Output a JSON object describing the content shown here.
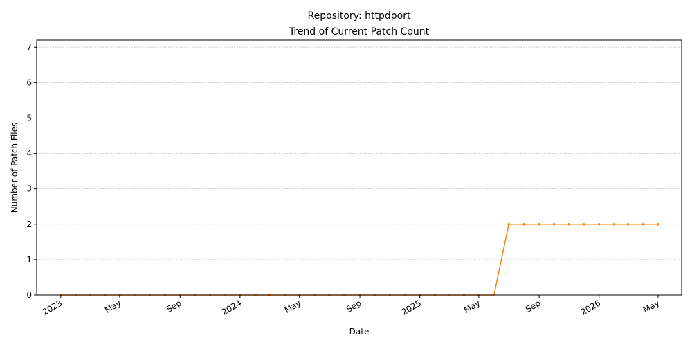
{
  "chart_data": {
    "type": "line",
    "title_line1": "Repository: httpdport",
    "title_line2": "Trend of Current Patch Count",
    "xlabel": "Date",
    "ylabel": "Number of Patch Files",
    "ylim": [
      0,
      7.2
    ],
    "xlim": [
      "2022-11-13",
      "2026-06-18"
    ],
    "grid": "y",
    "line_color": "#ff7f0e",
    "x_ticks": [
      {
        "date": "2023-01-01",
        "label": "2023"
      },
      {
        "date": "2023-05-01",
        "label": "May"
      },
      {
        "date": "2023-09-01",
        "label": "Sep"
      },
      {
        "date": "2024-01-01",
        "label": "2024"
      },
      {
        "date": "2024-05-01",
        "label": "May"
      },
      {
        "date": "2024-09-01",
        "label": "Sep"
      },
      {
        "date": "2025-01-01",
        "label": "2025"
      },
      {
        "date": "2025-05-01",
        "label": "May"
      },
      {
        "date": "2025-09-01",
        "label": "Sep"
      },
      {
        "date": "2026-01-01",
        "label": "2026"
      },
      {
        "date": "2026-05-01",
        "label": "May"
      }
    ],
    "y_ticks": [
      0,
      1,
      2,
      3,
      4,
      5,
      6,
      7
    ],
    "series": [
      {
        "x": [
          "2023-01-01",
          "2023-02-01",
          "2023-03-01",
          "2023-04-01",
          "2023-05-01",
          "2023-06-01",
          "2023-07-01",
          "2023-08-01",
          "2023-09-01",
          "2023-10-01",
          "2023-11-01",
          "2023-12-01",
          "2024-01-01",
          "2024-02-01",
          "2024-03-01",
          "2024-04-01",
          "2024-05-01",
          "2024-06-01",
          "2024-07-01",
          "2024-08-01",
          "2024-09-01",
          "2024-10-01",
          "2024-11-01",
          "2024-12-01",
          "2025-01-01",
          "2025-02-01",
          "2025-03-01",
          "2025-04-01",
          "2025-05-01",
          "2025-06-01",
          "2025-07-01",
          "2025-08-01",
          "2025-09-01",
          "2025-10-01",
          "2025-11-01",
          "2025-12-01",
          "2026-01-01",
          "2026-02-01",
          "2026-03-01",
          "2026-04-01",
          "2026-05-01"
        ],
        "y": [
          0,
          0,
          0,
          0,
          0,
          0,
          0,
          0,
          0,
          0,
          0,
          0,
          0,
          0,
          0,
          0,
          0,
          0,
          0,
          0,
          0,
          0,
          0,
          0,
          0,
          0,
          0,
          0,
          0,
          0,
          2,
          2,
          2,
          2,
          2,
          2,
          2,
          2,
          2,
          2,
          2
        ]
      }
    ]
  }
}
